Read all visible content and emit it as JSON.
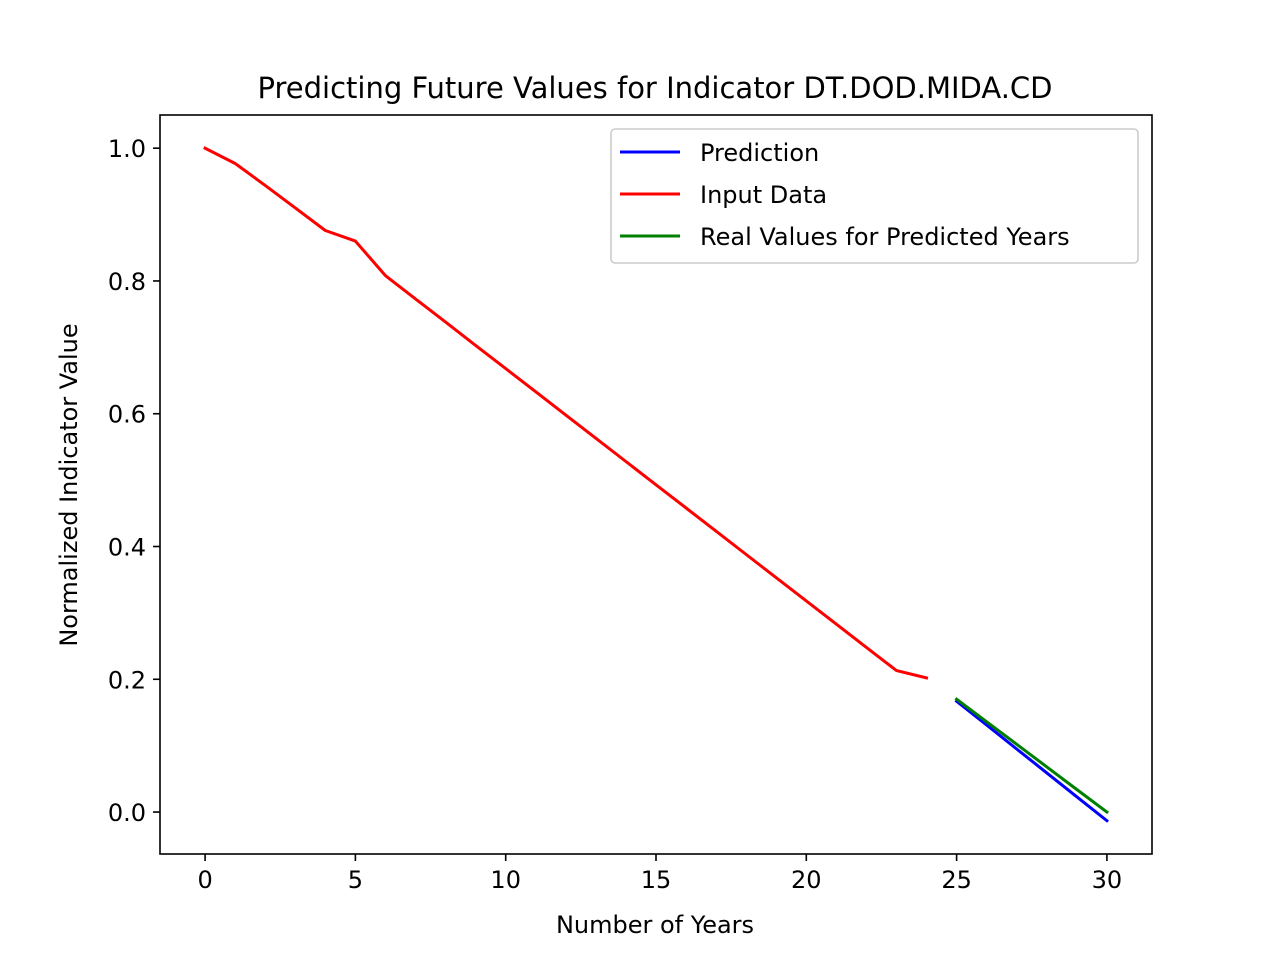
{
  "chart_data": {
    "type": "line",
    "title": "Predicting Future Values for Indicator DT.DOD.MIDA.CD",
    "xlabel": "Number of Years",
    "ylabel": "Normalized Indicator Value",
    "xlim": [
      -1.5,
      31.5
    ],
    "ylim": [
      -0.0632,
      1.05
    ],
    "xticks": [
      0,
      5,
      10,
      15,
      20,
      25,
      30
    ],
    "xtick_labels": [
      "0",
      "5",
      "10",
      "15",
      "20",
      "25",
      "30"
    ],
    "yticks": [
      0.0,
      0.2,
      0.4,
      0.6,
      0.8,
      1.0
    ],
    "ytick_labels": [
      "0.0",
      "0.2",
      "0.4",
      "0.6",
      "0.8",
      "1.0"
    ],
    "grid": false,
    "legend_position": "top-right",
    "series": [
      {
        "name": "Prediction",
        "color": "#0000ff",
        "x": [
          25,
          26,
          27,
          28,
          29,
          30
        ],
        "y": [
          0.167,
          0.131,
          0.095,
          0.059,
          0.023,
          -0.013
        ]
      },
      {
        "name": "Input Data",
        "color": "#ff0000",
        "x": [
          0,
          1,
          2,
          3,
          4,
          5,
          6,
          7,
          8,
          9,
          10,
          11,
          12,
          13,
          14,
          15,
          16,
          17,
          18,
          19,
          20,
          21,
          22,
          23,
          24
        ],
        "y": [
          1.0,
          0.977,
          0.944,
          0.91,
          0.876,
          0.86,
          0.808,
          0.773,
          0.738,
          0.703,
          0.668,
          0.633,
          0.598,
          0.563,
          0.528,
          0.493,
          0.458,
          0.423,
          0.388,
          0.353,
          0.318,
          0.283,
          0.248,
          0.213,
          0.202
        ]
      },
      {
        "name": "Real Values for Predicted Years",
        "color": "#008000",
        "x": [
          25,
          26,
          27,
          28,
          29,
          30
        ],
        "y": [
          0.17,
          0.136,
          0.102,
          0.068,
          0.034,
          0.0
        ]
      }
    ]
  }
}
